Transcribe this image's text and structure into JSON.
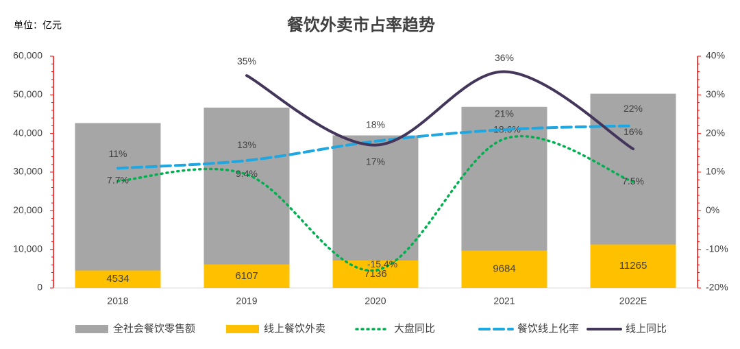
{
  "chart_data": {
    "type": "bar-line",
    "title": "餐饮外卖市占率趋势",
    "unit_label": "单位：亿元",
    "categories": [
      "2018",
      "2019",
      "2020",
      "2021",
      "2022E"
    ],
    "series": [
      {
        "name": "全社会餐饮零售额",
        "kind": "bar",
        "color": "#a6a6a6",
        "values": [
          42700,
          46700,
          39500,
          46900,
          50300
        ]
      },
      {
        "name": "线上餐饮外卖",
        "kind": "bar",
        "color": "#ffc000",
        "values": [
          4534,
          6107,
          7136,
          9684,
          11265
        ]
      },
      {
        "name": "大盘同比",
        "kind": "line",
        "style": "dotted",
        "axis": "y2",
        "color": "#00b050",
        "values": [
          7.7,
          9.4,
          -15.4,
          18.6,
          7.5
        ],
        "value_labels": [
          "7.7%",
          "9.4%",
          "-15.4%",
          "18.6%",
          "7.5%"
        ]
      },
      {
        "name": "餐饮线上化率",
        "kind": "line",
        "style": "dashed",
        "axis": "y2",
        "color": "#1ea7e1",
        "values": [
          11,
          13,
          18,
          21,
          22
        ],
        "value_labels": [
          "11%",
          "13%",
          "18%",
          "21%",
          "22%"
        ]
      },
      {
        "name": "线上同比",
        "kind": "line",
        "style": "solid",
        "axis": "y2",
        "color": "#44355b",
        "values": [
          null,
          35,
          17,
          36,
          16
        ],
        "value_labels": [
          null,
          "35%",
          "17%",
          "36%",
          "16%"
        ]
      }
    ],
    "ylim": [
      0,
      60000
    ],
    "yticks": [
      0,
      {
        "value": 10000,
        "label": "10,000"
      },
      {
        "value": 20000,
        "label": "20,000"
      },
      {
        "value": 30000,
        "label": "30,000"
      },
      {
        "value": 40000,
        "label": "40,000"
      },
      {
        "value": 50000,
        "label": "50,000"
      },
      {
        "value": 60000,
        "label": "60,000"
      }
    ],
    "y2lim": [
      -20,
      40
    ],
    "y2ticks": [
      {
        "value": -20,
        "label": "-20%"
      },
      {
        "value": -10,
        "label": "-10%"
      },
      {
        "value": 0,
        "label": "0%"
      },
      {
        "value": 10,
        "label": "10%"
      },
      {
        "value": 20,
        "label": "20%"
      },
      {
        "value": 30,
        "label": "30%"
      },
      {
        "value": 40,
        "label": "40%"
      }
    ],
    "axis_color": "#ff0000",
    "legend": "bottom"
  }
}
